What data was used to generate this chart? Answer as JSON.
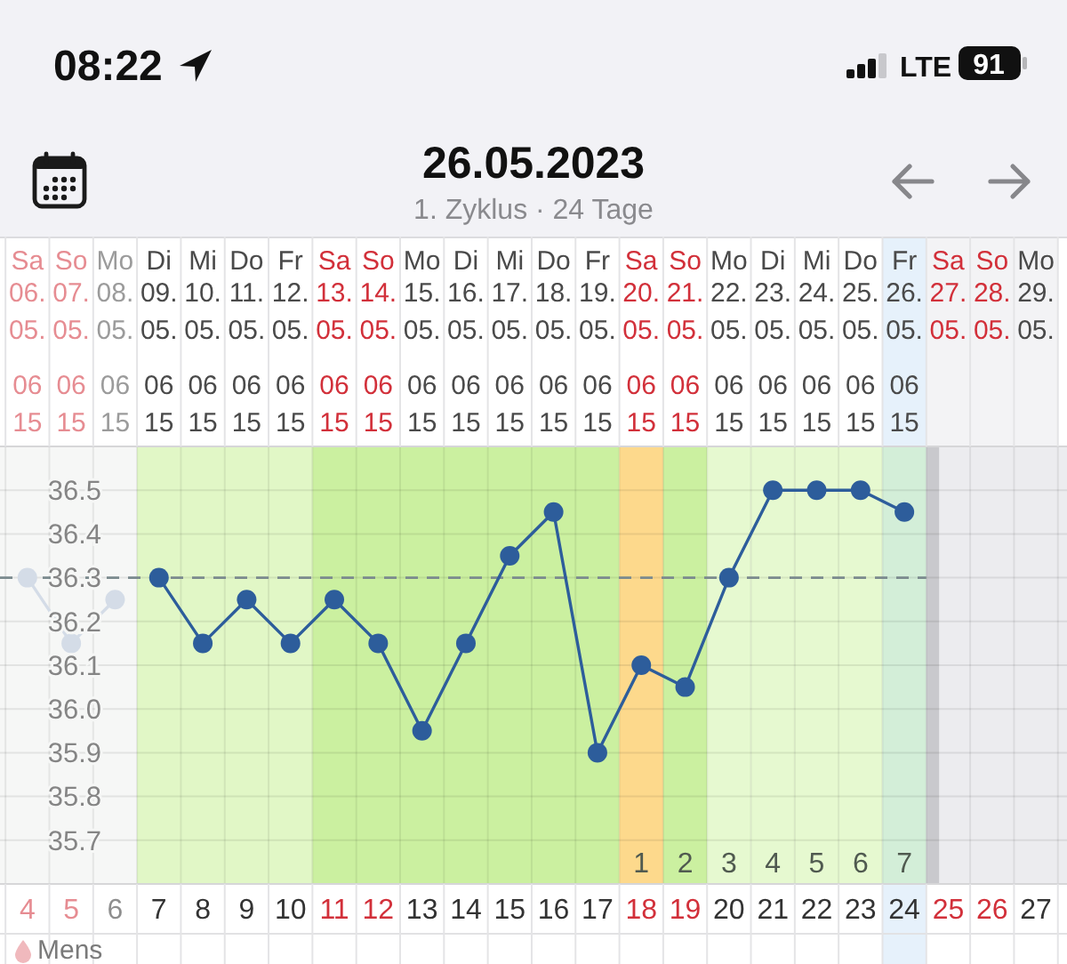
{
  "chart_data": {
    "type": "line",
    "title": "26.05.2023",
    "subtitle": "1. Zyklus · 24 Tage",
    "annotations": [
      "08:22",
      "LTE",
      "91",
      "Mens"
    ],
    "xlim": [
      "2023-05-05T09:00",
      "2023-05-29T17:00"
    ],
    "xticks": [
      {
        "value": "2023-05-06",
        "label": "4"
      },
      {
        "value": "2023-05-07",
        "label": "5"
      },
      {
        "value": "2023-05-08",
        "label": "6"
      },
      {
        "value": "2023-05-09",
        "label": "7"
      },
      {
        "value": "2023-05-10",
        "label": "8"
      },
      {
        "value": "2023-05-11",
        "label": "9"
      },
      {
        "value": "2023-05-12",
        "label": "10"
      },
      {
        "value": "2023-05-13",
        "label": "11"
      },
      {
        "value": "2023-05-14",
        "label": "12"
      },
      {
        "value": "2023-05-15",
        "label": "13"
      },
      {
        "value": "2023-05-16",
        "label": "14"
      },
      {
        "value": "2023-05-17",
        "label": "15"
      },
      {
        "value": "2023-05-18",
        "label": "16"
      },
      {
        "value": "2023-05-19",
        "label": "17"
      },
      {
        "value": "2023-05-20",
        "label": "18"
      },
      {
        "value": "2023-05-21",
        "label": "19"
      },
      {
        "value": "2023-05-22",
        "label": "20"
      },
      {
        "value": "2023-05-23",
        "label": "21"
      },
      {
        "value": "2023-05-24",
        "label": "22"
      },
      {
        "value": "2023-05-25",
        "label": "23"
      },
      {
        "value": "2023-05-26",
        "label": "24"
      },
      {
        "value": "2023-05-27",
        "label": "25"
      },
      {
        "value": "2023-05-28",
        "label": "26"
      },
      {
        "value": "2023-05-29",
        "label": "27"
      }
    ],
    "x2lim": [
      "2023-05-05T09:00",
      "2023-05-29T17:00"
    ],
    "x2ticks": [
      {
        "value": "2023-05-06",
        "label": "Sa\n06.\n05.\n\n06\n15"
      },
      {
        "value": "2023-05-07",
        "label": "So\n07.\n05.\n\n06\n15"
      },
      {
        "value": "2023-05-08",
        "label": "Mo\n08.\n05.\n\n06\n15"
      },
      {
        "value": "2023-05-09",
        "label": "Di\n09.\n05.\n\n06\n15"
      },
      {
        "value": "2023-05-10",
        "label": "Mi\n10.\n05.\n\n06\n15"
      },
      {
        "value": "2023-05-11",
        "label": "Do\n11.\n05.\n\n06\n15"
      },
      {
        "value": "2023-05-12",
        "label": "Fr\n12.\n05.\n\n06\n15"
      },
      {
        "value": "2023-05-13",
        "label": "Sa\n13.\n05.\n\n06\n15"
      },
      {
        "value": "2023-05-14",
        "label": "So\n14.\n05.\n\n06\n15"
      },
      {
        "value": "2023-05-15",
        "label": "Mo\n15.\n05.\n\n06\n15"
      },
      {
        "value": "2023-05-16",
        "label": "Di\n16.\n05.\n\n06\n15"
      },
      {
        "value": "2023-05-17",
        "label": "Mi\n17.\n05.\n\n06\n15"
      },
      {
        "value": "2023-05-18",
        "label": "Do\n18.\n05.\n\n06\n15"
      },
      {
        "value": "2023-05-19",
        "label": "Fr\n19.\n05.\n\n06\n15"
      },
      {
        "value": "2023-05-20",
        "label": "Sa\n20.\n05.\n\n06\n15"
      },
      {
        "value": "2023-05-21",
        "label": "So\n21.\n05.\n\n06\n15"
      },
      {
        "value": "2023-05-22",
        "label": "Mo\n22.\n05.\n\n06\n15"
      },
      {
        "value": "2023-05-23",
        "label": "Di\n23.\n05.\n\n06\n15"
      },
      {
        "value": "2023-05-24",
        "label": "Mi\n24.\n05.\n\n06\n15"
      },
      {
        "value": "2023-05-25",
        "label": "Do\n25.\n05.\n\n06\n15"
      },
      {
        "value": "2023-05-26",
        "label": "Fr\n26.\n05.\n\n06\n15"
      },
      {
        "value": "2023-05-27",
        "label": "Sa\n27.\n05."
      },
      {
        "value": "2023-05-28",
        "label": "So\n28.\n05."
      },
      {
        "value": "2023-05-29",
        "label": "Mo\n29.\n05."
      }
    ],
    "ylim": [
      35.6,
      36.6
    ],
    "yticks": [
      35.7,
      35.8,
      35.9,
      {
        "value": 36,
        "label": "36.0"
      },
      36.1,
      36.2,
      36.3,
      36.4,
      36.5
    ],
    "grid": true,
    "marker": "circle",
    "line_style": "solid",
    "series": [
      {
        "color": "#d4dce7",
        "x": [
          "2023-05-06",
          "2023-05-07",
          "2023-05-08"
        ],
        "values": [
          36.3,
          36.15,
          36.25
        ]
      },
      {
        "color": "#2d5d9b",
        "x": [
          "2023-05-09",
          "2023-05-10",
          "2023-05-11",
          "2023-05-12",
          "2023-05-13",
          "2023-05-14",
          "2023-05-15",
          "2023-05-16",
          "2023-05-17",
          "2023-05-18",
          "2023-05-19",
          "2023-05-20",
          "2023-05-21",
          "2023-05-22",
          "2023-05-23",
          "2023-05-24",
          "2023-05-25",
          "2023-05-26"
        ],
        "values": [
          36.3,
          36.15,
          36.25,
          36.15,
          36.25,
          36.15,
          35.95,
          36.15,
          36.35,
          36.45,
          35.9,
          36.1,
          36.05,
          36.3,
          36.5,
          36.5,
          36.5,
          36.45
        ]
      }
    ],
    "ref_lines": [
      {
        "axis": "y",
        "value": 36.3,
        "color": "#7b8a8e",
        "line_style": "dashed"
      }
    ],
    "bands": [
      {
        "axis": "x",
        "from": "2023-05-08T12:00",
        "to": "2023-05-12T12:00",
        "color": "#e1f7c6"
      },
      {
        "axis": "x",
        "from": "2023-05-12T12:00",
        "to": "2023-05-19T12:00",
        "color": "#cbf0a0"
      },
      {
        "axis": "x",
        "from": "2023-05-19T12:00",
        "to": "2023-05-20T12:00",
        "color": "#fdd98c",
        "label": "1"
      },
      {
        "axis": "x",
        "from": "2023-05-20T12:00",
        "to": "2023-05-21T12:00",
        "color": "#cbf0a0",
        "label": "2"
      },
      {
        "axis": "x",
        "from": "2023-05-21T12:00",
        "to": "2023-05-22T12:00",
        "color": "#e6f9d0",
        "label": "3"
      },
      {
        "axis": "x",
        "from": "2023-05-22T12:00",
        "to": "2023-05-23T12:00",
        "color": "#e6f9d0",
        "label": "4"
      },
      {
        "axis": "x",
        "from": "2023-05-23T12:00",
        "to": "2023-05-24T12:00",
        "color": "#e6f9d0",
        "label": "5"
      },
      {
        "axis": "x",
        "from": "2023-05-24T12:00",
        "to": "2023-05-25T12:00",
        "color": "#e6f9d0",
        "label": "6"
      },
      {
        "axis": "x",
        "from": "2023-05-25T12:00",
        "to": "2023-05-26T12:00",
        "color": "#d3eed8",
        "label": "7"
      },
      {
        "axis": "x",
        "from": "2023-05-26T12:00",
        "to": "2023-05-29T17:00",
        "color": "#ececef"
      },
      {
        "axis": "x",
        "from": "2023-05-26T12:00",
        "to": "2023-05-26T19:00",
        "color": "#c9c9cd"
      }
    ]
  }
}
